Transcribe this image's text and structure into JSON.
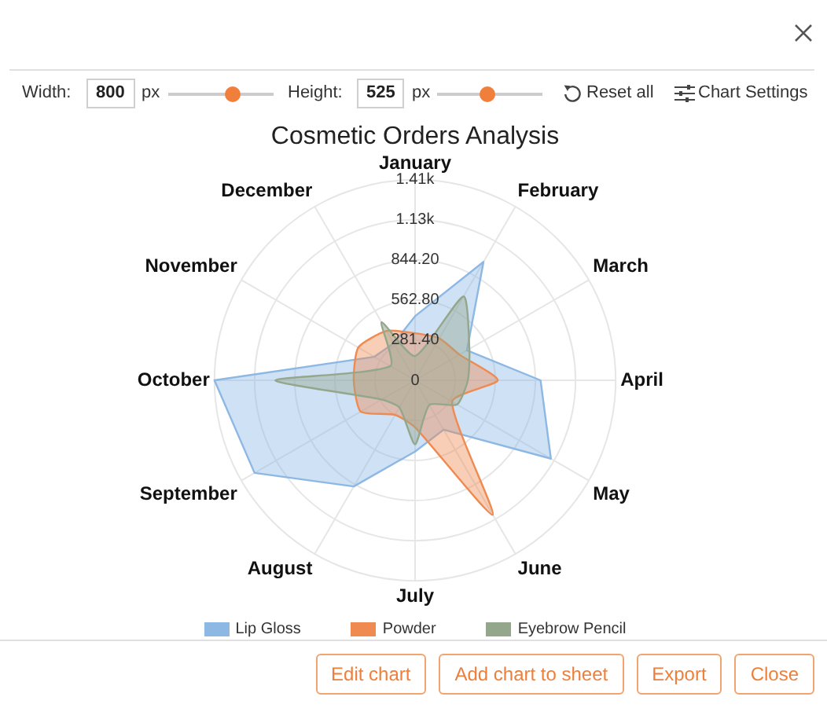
{
  "chart_data": {
    "type": "radar",
    "title": "Cosmetic Orders Analysis",
    "categories": [
      "January",
      "February",
      "March",
      "April",
      "May",
      "June",
      "July",
      "August",
      "September",
      "October",
      "November",
      "December"
    ],
    "series": [
      {
        "name": "Lip Gloss",
        "color": "#8db8e4",
        "values": [
          450,
          960,
          420,
          880,
          1100,
          400,
          500,
          860,
          1300,
          1407,
          330,
          300
        ]
      },
      {
        "name": "Powder",
        "color": "#ef8a50",
        "values": [
          330,
          340,
          360,
          580,
          300,
          1090,
          330,
          280,
          440,
          430,
          460,
          400
        ]
      },
      {
        "name": "Eyebrow Pencil",
        "color": "#94a78c",
        "values": [
          170,
          680,
          440,
          370,
          340,
          200,
          450,
          220,
          270,
          980,
          200,
          470
        ]
      }
    ],
    "ylim": [
      0,
      1407
    ],
    "yticks": [
      0,
      {
        "value": 281.4,
        "label": "281.40"
      },
      {
        "value": 562.8,
        "label": "562.80"
      },
      {
        "value": 844.2,
        "label": "844.20"
      },
      {
        "value": 1125.6,
        "label": "1.13k"
      },
      {
        "value": 1407,
        "label": "1.41k"
      }
    ],
    "grid": true,
    "legend": "bottom",
    "annotations": [
      "Width:",
      "800",
      "px",
      "Height:",
      "525",
      "px",
      "Reset all",
      "Chart Settings",
      "Edit chart",
      "Add chart to sheet",
      "Export",
      "Close"
    ]
  }
}
